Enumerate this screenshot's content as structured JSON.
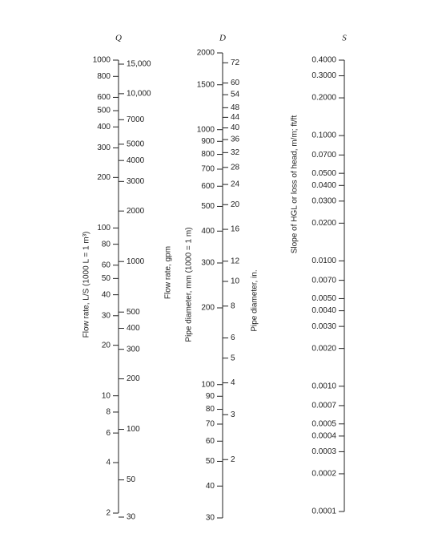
{
  "log_scale": true,
  "scales": [
    {
      "symbol": "Q",
      "left": {
        "title": "Flow rate, L/S  (1000 L = 1 m³)",
        "lim": [
          2,
          1000
        ],
        "ticks": [
          1000,
          800,
          600,
          500,
          400,
          300,
          200,
          100,
          80,
          60,
          50,
          40,
          30,
          20,
          10,
          8,
          6,
          4,
          2
        ]
      },
      "right": {
        "title": "Flow rate, gpm",
        "lim": [
          31.7,
          15850
        ],
        "ticks": [
          {
            "value": 15000,
            "label": "15,000"
          },
          {
            "value": 10000,
            "label": "10,000"
          },
          7000,
          5000,
          4000,
          3000,
          2000,
          1000,
          500,
          400,
          300,
          200,
          100,
          50,
          30
        ]
      }
    },
    {
      "symbol": "D",
      "left": {
        "title": "Pipe diameter, mm  (1000 = 1 m)",
        "lim": [
          30,
          2000
        ],
        "ticks": [
          2000,
          1500,
          1000,
          900,
          800,
          700,
          600,
          500,
          400,
          300,
          200,
          100,
          90,
          80,
          70,
          60,
          50,
          40,
          30
        ]
      },
      "right": {
        "title": "Pipe diameter, in.",
        "lim": [
          1.181,
          78.74
        ],
        "ticks": [
          72,
          60,
          54,
          48,
          44,
          40,
          36,
          32,
          28,
          24,
          20,
          16,
          12,
          10,
          8,
          6,
          5,
          4,
          3,
          2
        ]
      }
    },
    {
      "symbol": "S",
      "left": {
        "title": "Slope of HGL or loss of head, m/m; ft/ft",
        "lim": [
          0.0001,
          0.4
        ],
        "ticks": [
          {
            "value": 0.0001,
            "label": "0.0001"
          },
          {
            "value": 0.0002,
            "label": "0.0002"
          },
          {
            "value": 0.0003,
            "label": "0.0003"
          },
          {
            "value": 0.0004,
            "label": "0.0004"
          },
          {
            "value": 0.0005,
            "label": "0.0005"
          },
          {
            "value": 0.0007,
            "label": "0.0007"
          },
          {
            "value": 0.001,
            "label": "0.0010"
          },
          {
            "value": 0.002,
            "label": "0.0020"
          },
          {
            "value": 0.003,
            "label": "0.0030"
          },
          {
            "value": 0.004,
            "label": "0.0040"
          },
          {
            "value": 0.005,
            "label": "0.0050"
          },
          {
            "value": 0.007,
            "label": "0.0070"
          },
          {
            "value": 0.01,
            "label": "0.0100"
          },
          {
            "value": 0.02,
            "label": "0.0200"
          },
          {
            "value": 0.03,
            "label": "0.0300"
          },
          {
            "value": 0.04,
            "label": "0.0400"
          },
          {
            "value": 0.05,
            "label": "0.0500"
          },
          {
            "value": 0.07,
            "label": "0.0700"
          },
          {
            "value": 0.1,
            "label": "0.1000"
          },
          {
            "value": 0.2,
            "label": "0.2000"
          },
          {
            "value": 0.3,
            "label": "0.3000"
          },
          {
            "value": 0.4,
            "label": "0.4000"
          }
        ]
      }
    }
  ]
}
